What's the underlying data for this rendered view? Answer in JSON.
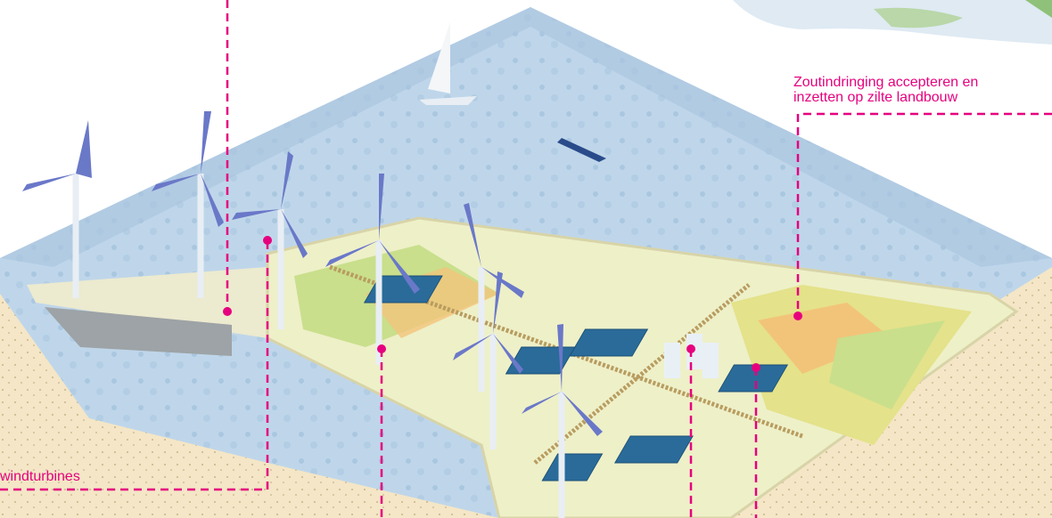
{
  "callouts": [
    {
      "lines": [
        "Zoutindringing accepteren en",
        "inzetten op zilte landbouw"
      ]
    },
    {
      "lines": [
        "windturbines"
      ]
    }
  ]
}
